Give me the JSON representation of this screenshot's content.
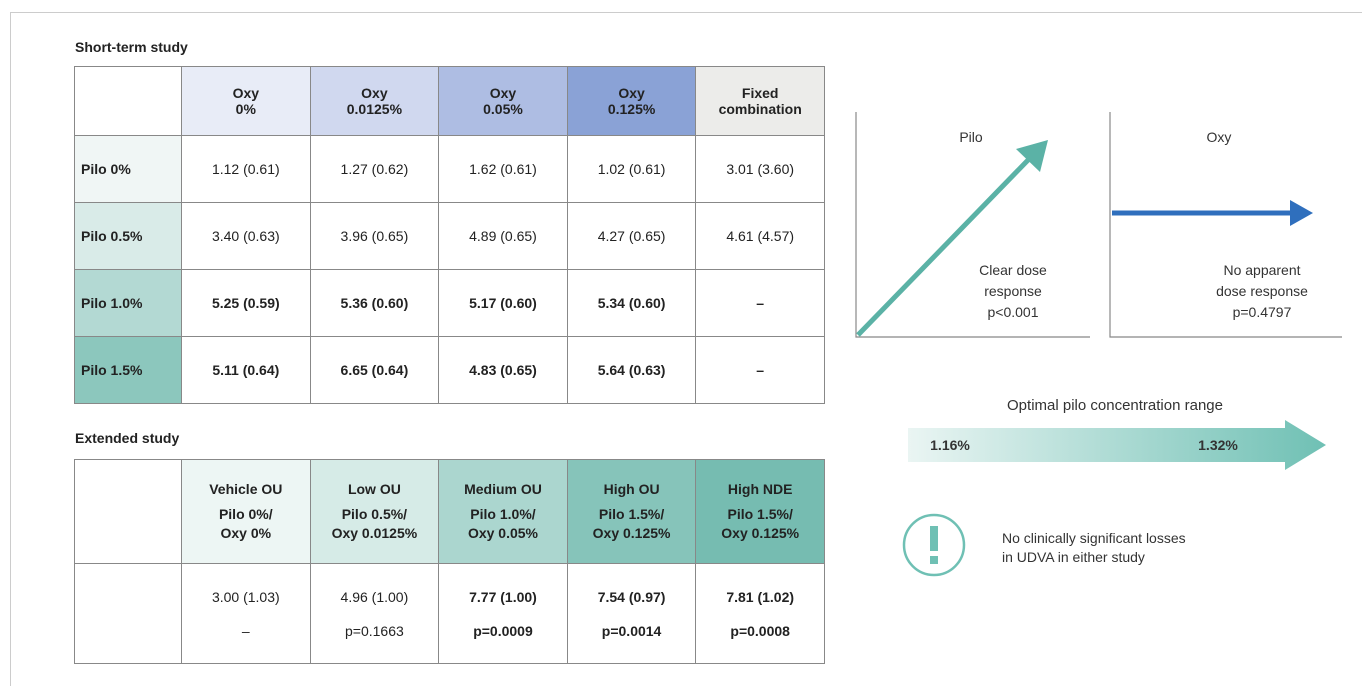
{
  "short_term": {
    "title": "Short-term study",
    "columns": [
      [
        "Oxy",
        "0%"
      ],
      [
        "Oxy",
        "0.0125%"
      ],
      [
        "Oxy",
        "0.05%"
      ],
      [
        "Oxy",
        "0.125%"
      ],
      [
        "Fixed",
        "combination"
      ]
    ],
    "rows": [
      {
        "label": "Pilo 0%",
        "values": [
          "1.12 (0.61)",
          "1.27 (0.62)",
          "1.62 (0.61)",
          "1.02 (0.61)",
          "3.01 (3.60)"
        ]
      },
      {
        "label": "Pilo 0.5%",
        "values": [
          "3.40 (0.63)",
          "3.96 (0.65)",
          "4.89 (0.65)",
          "4.27 (0.65)",
          "4.61 (4.57)"
        ]
      },
      {
        "label": "Pilo 1.0%",
        "values": [
          "5.25 (0.59)",
          "5.36 (0.60)",
          "5.17 (0.60)",
          "5.34 (0.60)",
          "–"
        ]
      },
      {
        "label": "Pilo 1.5%",
        "values": [
          "5.11 (0.64)",
          "6.65 (0.64)",
          "4.83 (0.65)",
          "5.64 (0.63)",
          "–"
        ]
      }
    ]
  },
  "extended": {
    "title": "Extended study",
    "columns": [
      [
        "Vehicle OU",
        "Pilo 0%/",
        "Oxy 0%"
      ],
      [
        "Low OU",
        "Pilo 0.5%/",
        "Oxy 0.0125%"
      ],
      [
        "Medium OU",
        "Pilo 1.0%/",
        "Oxy 0.05%"
      ],
      [
        "High OU",
        "Pilo 1.5%/",
        "Oxy 0.125%"
      ],
      [
        "High NDE",
        "Pilo 1.5%/",
        "Oxy 0.125%"
      ]
    ],
    "values": [
      "3.00 (1.03)",
      "4.96 (1.00)",
      "7.77 (1.00)",
      "7.54 (0.97)",
      "7.81 (1.02)"
    ],
    "p_values": [
      "–",
      "p=0.1663",
      "p=0.0009",
      "p=0.0014",
      "p=0.0008"
    ]
  },
  "panels": [
    {
      "title": "Pilo",
      "caption": [
        "Clear dose",
        "response",
        "p<0.001"
      ]
    },
    {
      "title": "Oxy",
      "caption": [
        "No apparent",
        "dose response",
        "p=0.4797"
      ]
    }
  ],
  "range": {
    "title": "Optimal pilo concentration range",
    "low": "1.16%",
    "high": "1.32%"
  },
  "note": [
    "No clinically significant losses",
    "in UDVA in either study"
  ]
}
